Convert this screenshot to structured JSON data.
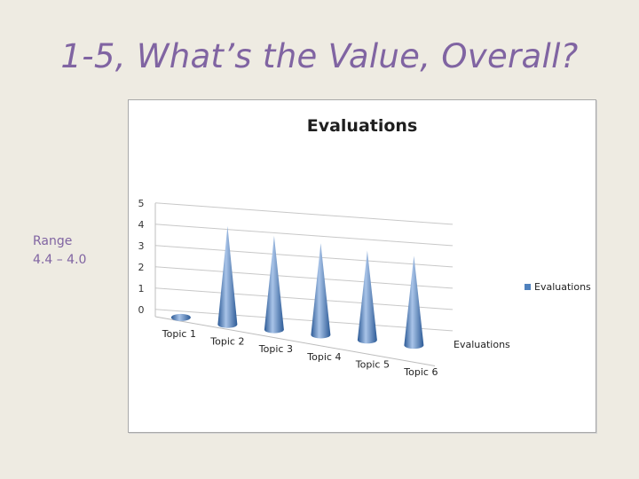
{
  "slide": {
    "title": "1-5, What’s the Value, Overall?",
    "note_lines": [
      "Range",
      "4.4 – 4.0"
    ]
  },
  "chart_data": {
    "type": "bar",
    "title": "Evaluations",
    "categories": [
      "Topic 1",
      "Topic 2",
      "Topic 3",
      "Topic 4",
      "Topic 5",
      "Topic 6"
    ],
    "series": [
      {
        "name": "Evaluations",
        "values": [
          0,
          4.4,
          4.2,
          4.1,
          4.0,
          4.0
        ]
      }
    ],
    "xlabel": "",
    "ylabel": "",
    "depth_axis_label": "Evaluations",
    "ylim": [
      0,
      5
    ],
    "y_ticks": [
      0,
      1,
      2,
      3,
      4,
      5
    ],
    "grid": true,
    "bar_shape": "cone",
    "legend": "right",
    "colors": {
      "series": "#4f81bd",
      "series_dark": "#2c5a96",
      "series_light": "#a9c4e8"
    }
  }
}
